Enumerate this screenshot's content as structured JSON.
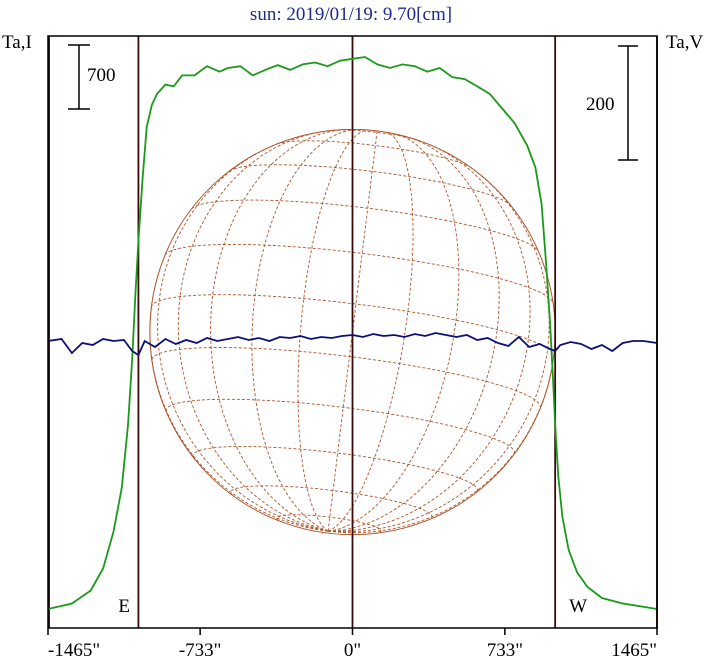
{
  "chart_data": {
    "type": "line",
    "title": "sun: 2019/01/19: 9.70[cm]",
    "ylabel_left": "Ta,I",
    "ylabel_right": "Ta,V",
    "scale_left": "700",
    "scale_right": "200",
    "xlim": [
      -1465,
      1465
    ],
    "xticks": [
      {
        "value": -1465,
        "label": "-1465\""
      },
      {
        "value": -733,
        "label": "-733\""
      },
      {
        "value": 0,
        "label": "0\""
      },
      {
        "value": 733,
        "label": "733\""
      },
      {
        "value": 1465,
        "label": "1465\""
      }
    ],
    "vertical_lines": [
      -1460,
      -1030,
      0,
      975,
      1465
    ],
    "limb_markers": [
      {
        "label": "E",
        "x": -1030
      },
      {
        "label": "W",
        "x": 975
      }
    ],
    "solar_disk": {
      "center_x": 0,
      "radius": 975
    },
    "colors": {
      "intensity": "#1a9a1a",
      "polarization": "#0c0f78",
      "disk": "#b0542a",
      "frame": "#000000",
      "vline": "#3a0a0a",
      "title": "#1f2a8a"
    },
    "series": [
      {
        "name": "Ta,I",
        "x": [
          -1465,
          -1350,
          -1260,
          -1200,
          -1150,
          -1110,
          -1080,
          -1060,
          -1045,
          -1030,
          -1010,
          -990,
          -965,
          -940,
          -900,
          -860,
          -820,
          -760,
          -700,
          -640,
          -600,
          -540,
          -480,
          -420,
          -360,
          -300,
          -240,
          -180,
          -120,
          -60,
          0,
          60,
          120,
          180,
          240,
          300,
          360,
          420,
          480,
          540,
          600,
          660,
          720,
          780,
          840,
          880,
          910,
          930,
          950,
          965,
          975,
          990,
          1010,
          1040,
          1080,
          1130,
          1200,
          1300,
          1380,
          1465
        ],
        "y": [
          0,
          15,
          50,
          110,
          210,
          330,
          500,
          680,
          850,
          1000,
          1170,
          1310,
          1370,
          1400,
          1425,
          1420,
          1450,
          1450,
          1475,
          1460,
          1470,
          1475,
          1450,
          1465,
          1478,
          1465,
          1480,
          1485,
          1475,
          1490,
          1495,
          1500,
          1480,
          1470,
          1480,
          1475,
          1460,
          1470,
          1445,
          1440,
          1420,
          1400,
          1360,
          1320,
          1260,
          1200,
          1100,
          950,
          780,
          620,
          500,
          360,
          250,
          160,
          100,
          60,
          30,
          15,
          8,
          0
        ]
      },
      {
        "name": "Ta,V",
        "x": [
          -1465,
          -1400,
          -1350,
          -1300,
          -1250,
          -1200,
          -1150,
          -1100,
          -1060,
          -1030,
          -1000,
          -950,
          -900,
          -850,
          -800,
          -750,
          -700,
          -650,
          -600,
          -550,
          -500,
          -450,
          -400,
          -350,
          -300,
          -250,
          -200,
          -150,
          -100,
          -50,
          0,
          50,
          100,
          150,
          200,
          250,
          300,
          350,
          400,
          450,
          500,
          550,
          600,
          650,
          700,
          750,
          800,
          850,
          900,
          950,
          975,
          1000,
          1050,
          1100,
          1150,
          1200,
          1250,
          1300,
          1350,
          1400,
          1465
        ],
        "y": [
          0,
          2,
          -12,
          -2,
          -4,
          2,
          0,
          1,
          -10,
          -14,
          0,
          -6,
          2,
          -3,
          1,
          -2,
          3,
          0,
          2,
          4,
          1,
          3,
          0,
          4,
          3,
          5,
          2,
          4,
          3,
          5,
          6,
          4,
          7,
          5,
          6,
          4,
          7,
          5,
          8,
          6,
          4,
          6,
          1,
          3,
          -2,
          -5,
          4,
          -6,
          -3,
          -8,
          -10,
          -4,
          -1,
          -3,
          -8,
          -4,
          -10,
          -2,
          0,
          0,
          -2
        ]
      }
    ]
  }
}
